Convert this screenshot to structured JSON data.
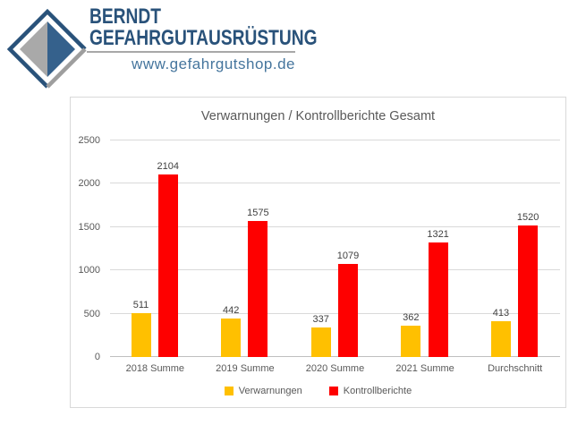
{
  "logo": {
    "company_line1": "BERNDT",
    "company_line2": "GEFAHRGUTAUSRÜSTUNG",
    "website": "www.gefahrgutshop.de",
    "colors": {
      "dark_blue": "#29527a",
      "steel_blue": "#35618c",
      "gray": "#a9a9a9",
      "rule_gray": "#a8a8a8",
      "site_blue": "#45759d"
    }
  },
  "chart_data": {
    "type": "bar",
    "title": "Verwarnungen / Kontrollberichte Gesamt",
    "categories": [
      "2018 Summe",
      "2019 Summe",
      "2020 Summe",
      "2021 Summe",
      "Durchschnitt"
    ],
    "series": [
      {
        "name": "Verwarnungen",
        "color": "#FFC000",
        "values": [
          511,
          442,
          337,
          362,
          413
        ]
      },
      {
        "name": "Kontrollberichte",
        "color": "#FE0000",
        "values": [
          2104,
          1575,
          1079,
          1321,
          1520
        ]
      }
    ],
    "y_ticks": [
      0,
      500,
      1000,
      1500,
      2000,
      2500
    ],
    "ylim": [
      0,
      2500
    ],
    "grid": true,
    "legend_position": "bottom",
    "data_labels": true,
    "colors": {
      "gridline": "#d9d9d9",
      "axis_line": "#bfbfbf",
      "text": "#595959",
      "data_label": "#404040"
    }
  }
}
